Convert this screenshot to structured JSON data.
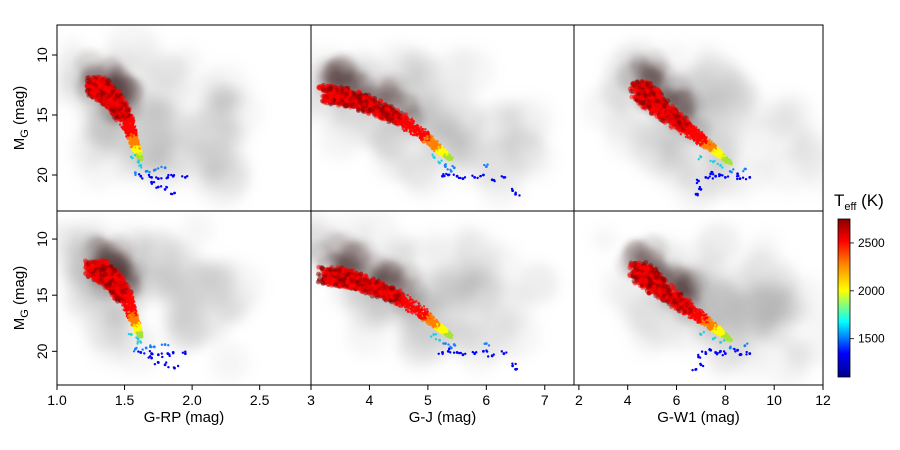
{
  "chart_data": {
    "type": "scatter",
    "layout": "2x3 grid of color-magnitude density plots colored by effective temperature",
    "y_axis": {
      "label_main": "M",
      "label_sub": "G",
      "label_unit": " (mag)",
      "range_inverted": [
        23,
        7.5
      ],
      "ticks": [
        10,
        15,
        20
      ],
      "tick_labels": [
        "10",
        "15",
        "20"
      ]
    },
    "columns": [
      {
        "xlabel": "G-RP (mag)",
        "xlim": [
          1.0,
          2.88
        ],
        "ticks": [
          1.0,
          1.5,
          2.0,
          2.5
        ],
        "tick_labels": [
          "1.0",
          "1.5",
          "2.0",
          "2.5"
        ],
        "ridge": [
          [
            1.28,
            12.5
          ],
          [
            1.42,
            13.8
          ],
          [
            1.52,
            15.5
          ],
          [
            1.58,
            17.5
          ],
          [
            1.62,
            18.7
          ]
        ],
        "cool_points": [
          [
            1.55,
            18.5
          ],
          [
            1.6,
            18.9
          ],
          [
            1.62,
            19.2
          ],
          [
            1.66,
            19.7
          ],
          [
            1.72,
            19.6
          ],
          [
            1.8,
            19.4
          ],
          [
            1.62,
            20.1
          ],
          [
            1.7,
            20.2
          ],
          [
            1.75,
            20.3
          ],
          [
            1.82,
            20.2
          ],
          [
            1.86,
            20.1
          ],
          [
            1.7,
            20.6
          ],
          [
            1.75,
            21.0
          ],
          [
            1.8,
            21.2
          ],
          [
            1.87,
            21.5
          ],
          [
            1.95,
            20.2
          ],
          [
            1.58,
            19.8
          ]
        ]
      },
      {
        "xlabel": "G-J (mag)",
        "xlim": [
          3.0,
          7.5
        ],
        "ticks": [
          3,
          4,
          5,
          6,
          7
        ],
        "tick_labels": [
          "3",
          "4",
          "5",
          "6",
          "7"
        ],
        "ridge": [
          [
            3.3,
            13.2
          ],
          [
            3.8,
            13.8
          ],
          [
            4.4,
            15.0
          ],
          [
            4.9,
            16.6
          ],
          [
            5.2,
            17.9
          ],
          [
            5.4,
            18.7
          ]
        ],
        "cool_points": [
          [
            5.1,
            18.5
          ],
          [
            5.2,
            19.0
          ],
          [
            5.3,
            19.3
          ],
          [
            5.4,
            19.7
          ],
          [
            5.35,
            20.0
          ],
          [
            5.5,
            20.1
          ],
          [
            5.6,
            20.3
          ],
          [
            5.8,
            20.2
          ],
          [
            5.95,
            20.0
          ],
          [
            6.1,
            20.4
          ],
          [
            6.0,
            19.3
          ],
          [
            6.45,
            21.3
          ],
          [
            6.5,
            21.6
          ],
          [
            5.45,
            19.4
          ],
          [
            6.3,
            20.2
          ],
          [
            5.25,
            20.1
          ]
        ]
      },
      {
        "xlabel": "G-W1 (mag)",
        "xlim": [
          1.8,
          12.0
        ],
        "ticks": [
          2,
          4,
          6,
          8,
          10,
          12
        ],
        "tick_labels": [
          "2",
          "4",
          "6",
          "8",
          "10",
          "12"
        ],
        "ridge": [
          [
            4.5,
            12.8
          ],
          [
            5.2,
            14.2
          ],
          [
            6.2,
            15.8
          ],
          [
            7.0,
            17.0
          ],
          [
            7.6,
            18.0
          ],
          [
            8.2,
            19.0
          ]
        ],
        "cool_points": [
          [
            7.0,
            18.5
          ],
          [
            7.5,
            18.9
          ],
          [
            7.8,
            19.2
          ],
          [
            8.2,
            19.7
          ],
          [
            8.5,
            19.9
          ],
          [
            7.6,
            20.1
          ],
          [
            7.8,
            20.0
          ],
          [
            8.0,
            20.2
          ],
          [
            8.6,
            20.3
          ],
          [
            9.0,
            20.2
          ],
          [
            6.9,
            20.5
          ],
          [
            7.0,
            21.2
          ],
          [
            6.8,
            21.6
          ],
          [
            7.2,
            20.2
          ],
          [
            8.8,
            19.5
          ],
          [
            7.4,
            19.9
          ]
        ]
      }
    ],
    "colorbar": {
      "label_main": "T",
      "label_sub": "eff",
      "label_unit": " (K)",
      "range": [
        1100,
        2750
      ],
      "ticks": [
        1500,
        2000,
        2500
      ],
      "tick_labels": [
        "1500",
        "2000",
        "2500"
      ],
      "colormap": [
        "#00008b",
        "#0000ff",
        "#00ffff",
        "#ffff00",
        "#ff8000",
        "#ff0000",
        "#8b0000"
      ]
    },
    "grid": false
  }
}
